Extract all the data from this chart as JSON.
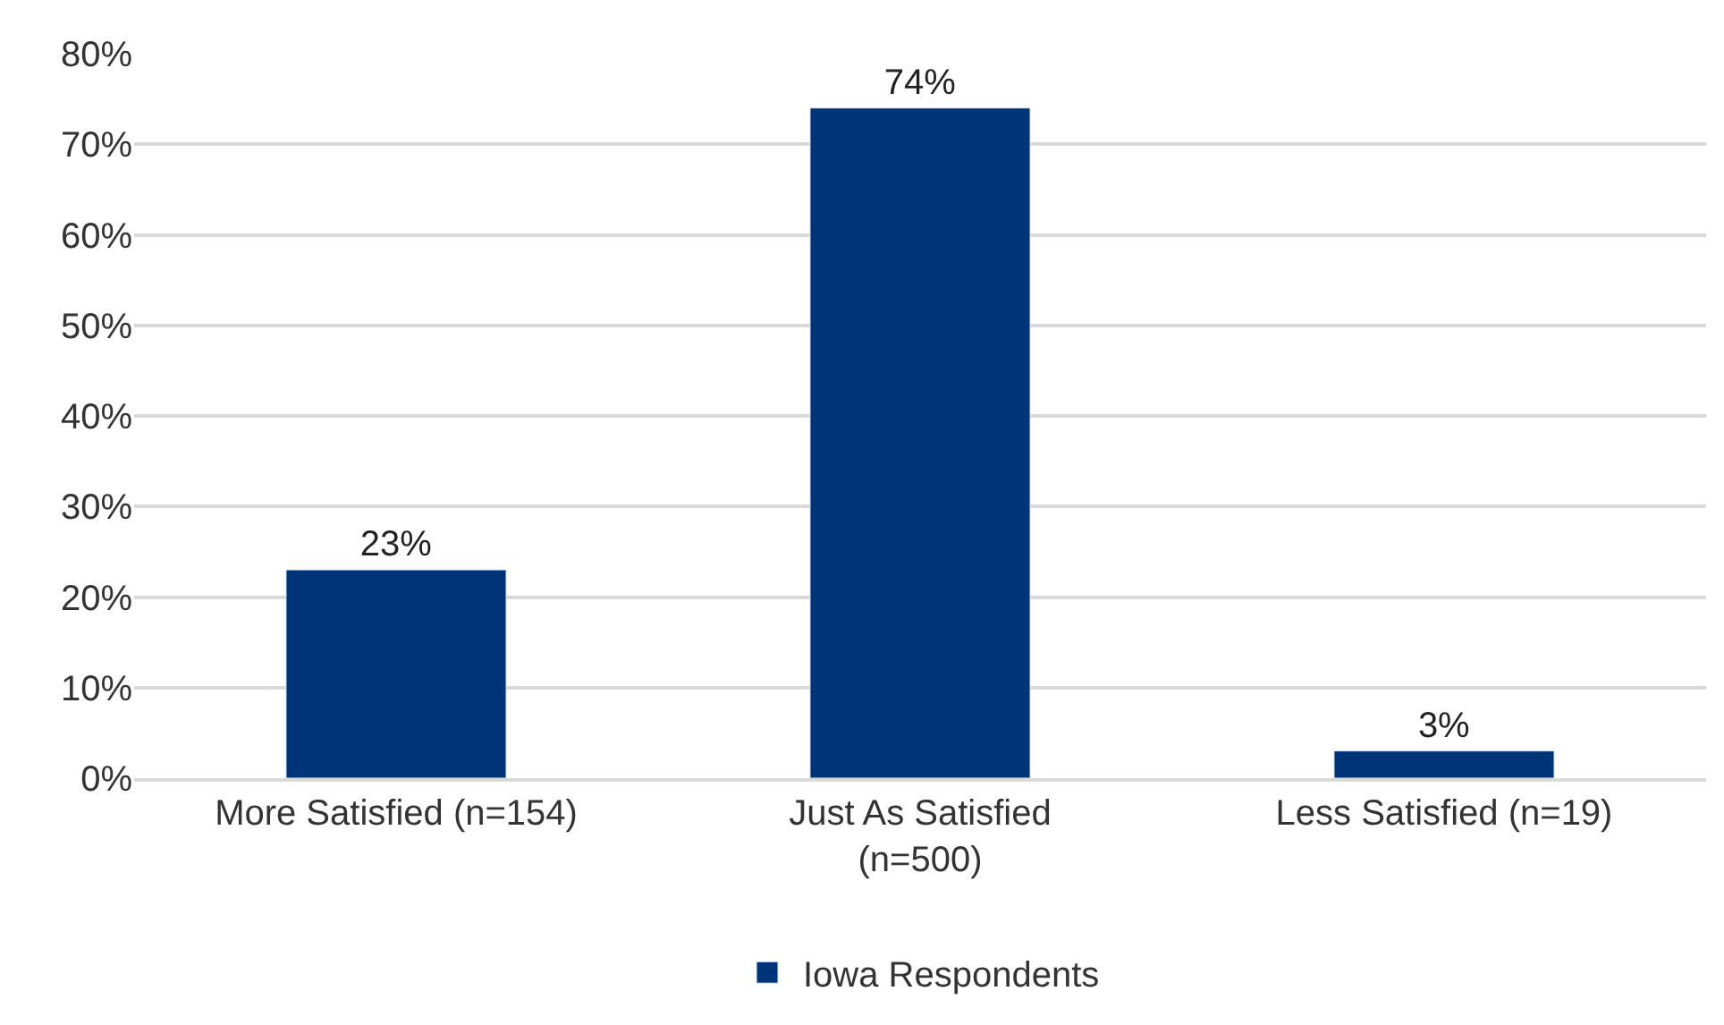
{
  "chart_data": {
    "type": "bar",
    "categories": [
      "More Satisfied (n=154)",
      "Just As Satisfied\n(n=500)",
      "Less Satisfied (n=19)"
    ],
    "series": [
      {
        "name": "Iowa Respondents",
        "color": "#003478",
        "values": [
          23,
          74,
          3
        ],
        "value_labels": [
          "23%",
          "74%",
          "3%"
        ]
      }
    ],
    "ylim": [
      0,
      80
    ],
    "yticks": [
      {
        "value": 0,
        "label": "0%"
      },
      {
        "value": 10,
        "label": "10%"
      },
      {
        "value": 20,
        "label": "20%"
      },
      {
        "value": 30,
        "label": "30%"
      },
      {
        "value": 40,
        "label": "40%"
      },
      {
        "value": 50,
        "label": "50%"
      },
      {
        "value": 60,
        "label": "60%"
      },
      {
        "value": 70,
        "label": "70%"
      },
      {
        "value": 80,
        "label": "80%"
      }
    ],
    "grid": "y",
    "legend": "bottom"
  }
}
